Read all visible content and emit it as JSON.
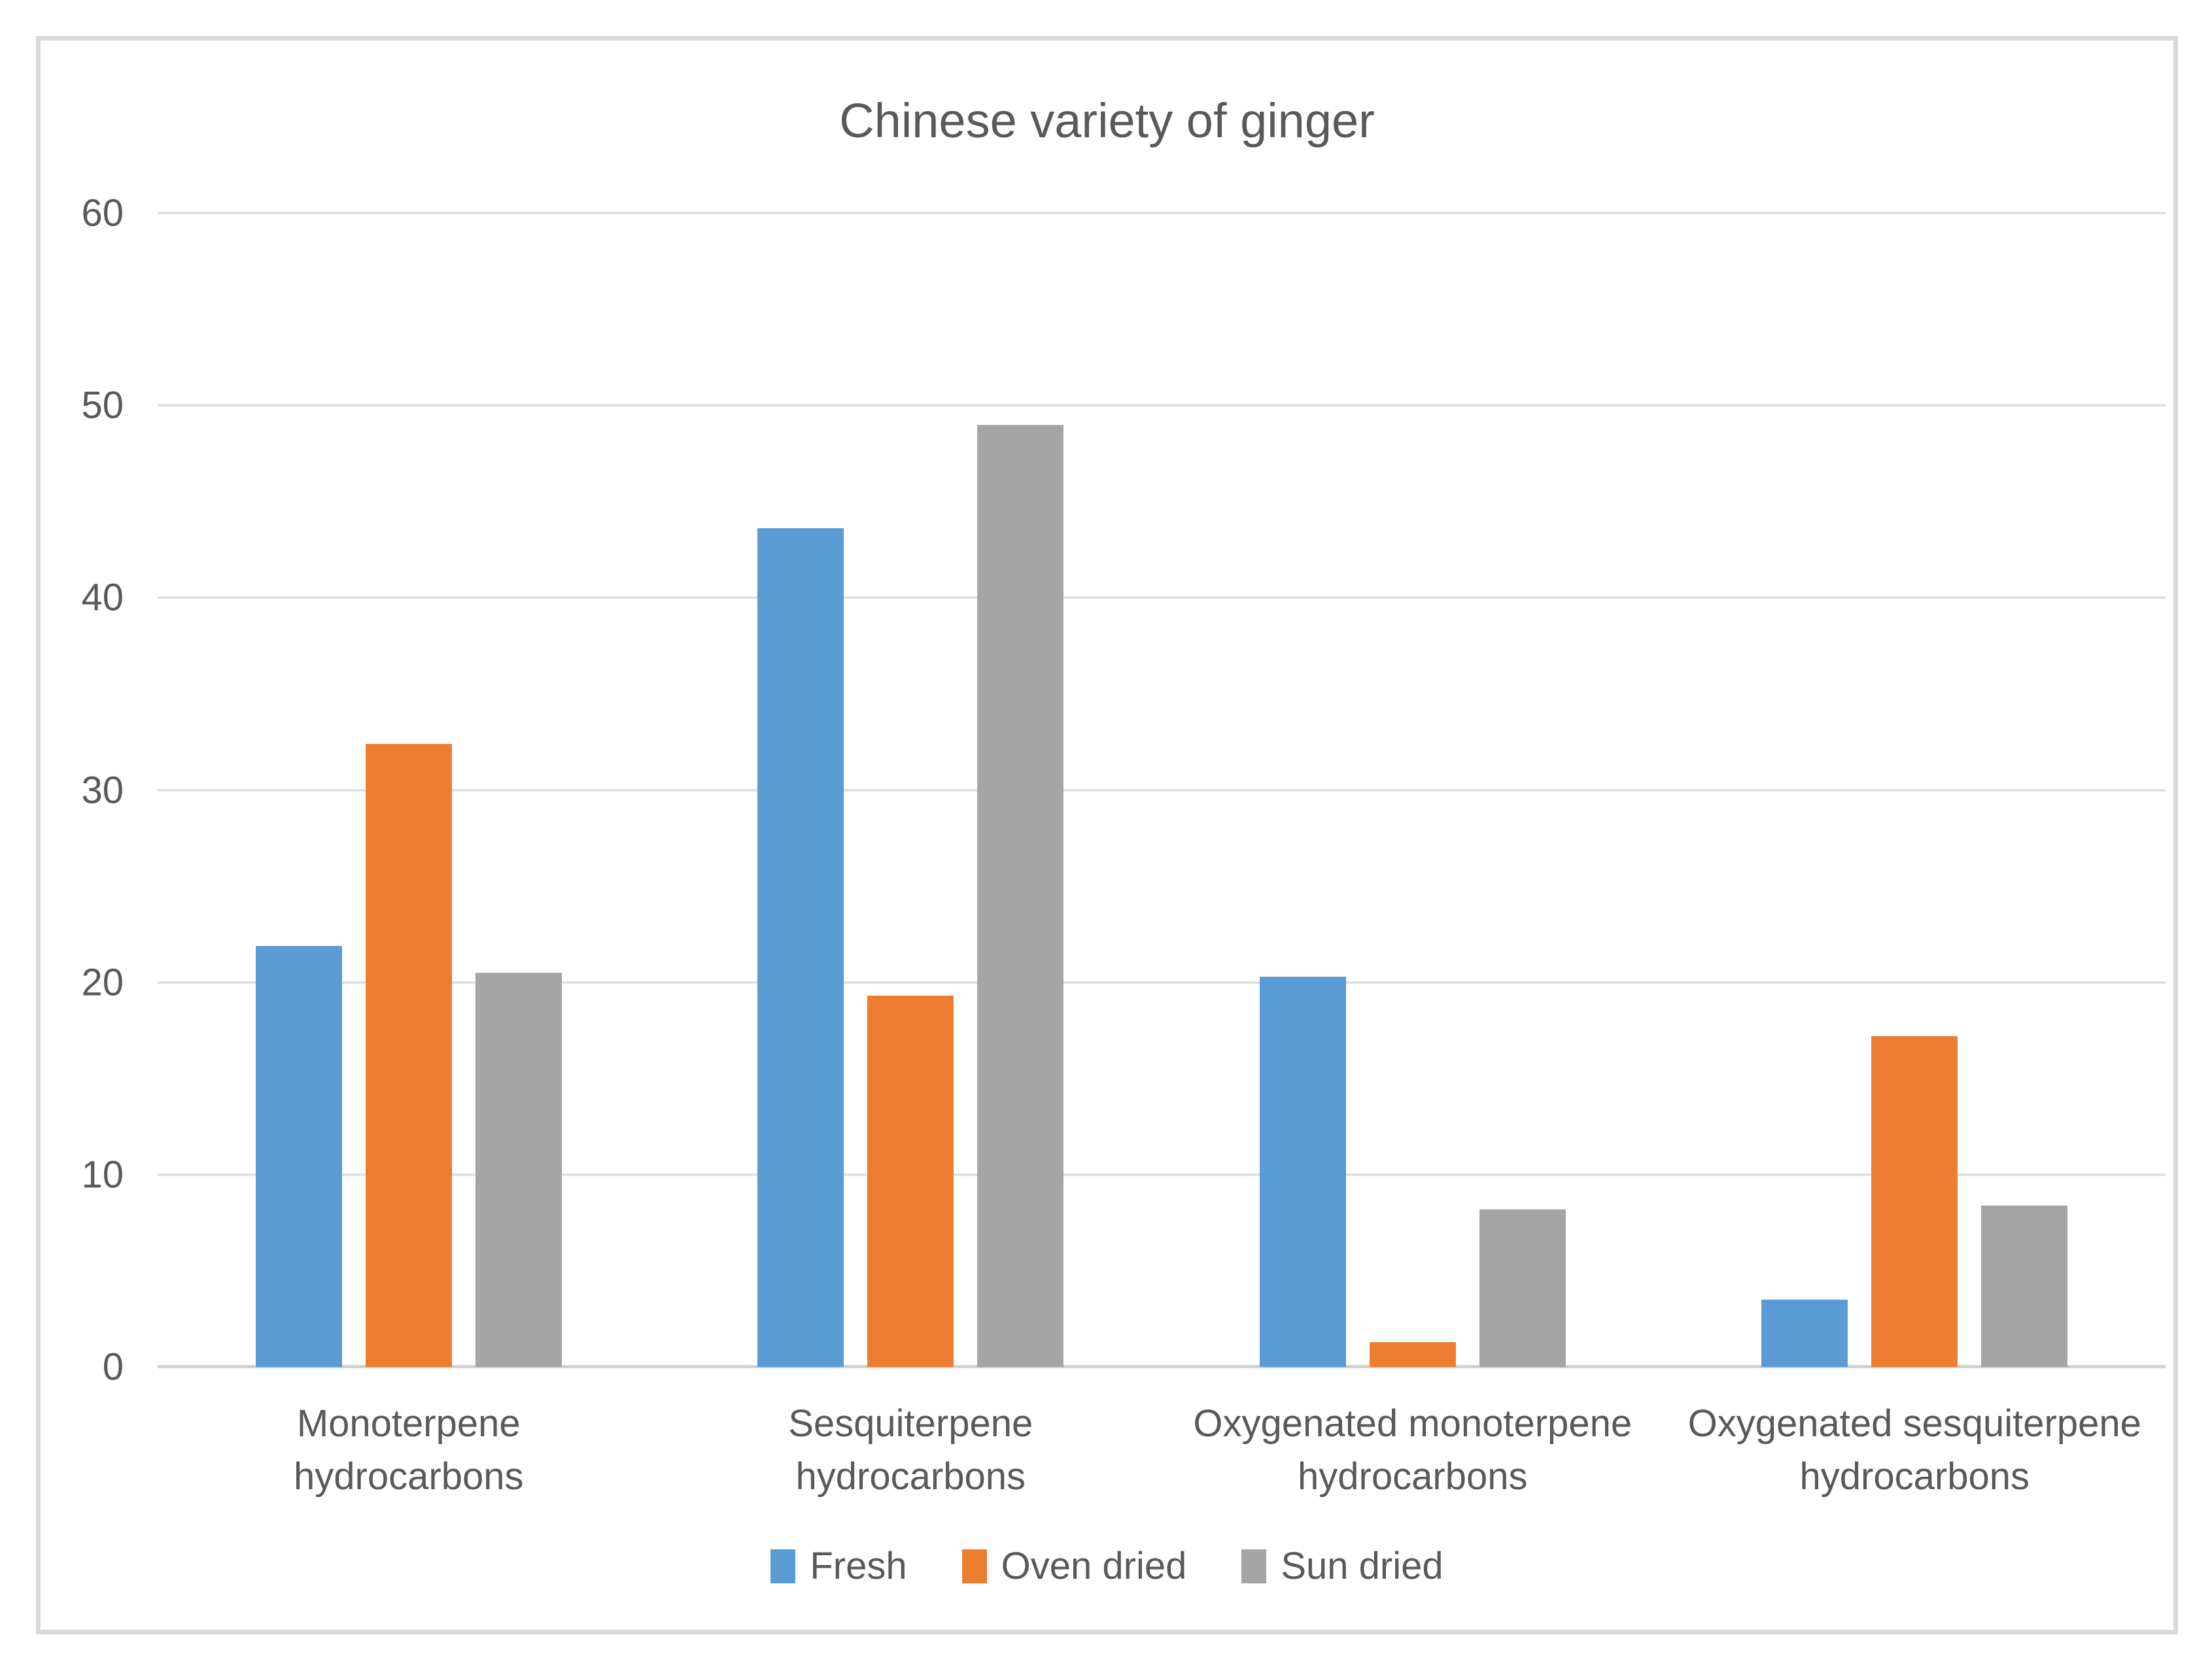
{
  "title": "Chinese variety of ginger",
  "chart_data": {
    "type": "bar",
    "title": "Chinese variety of ginger",
    "categories": [
      "Monoterpene\nhydrocarbons",
      "Sesquiterpene\nhydrocarbons",
      "Oxygenated monoterpene\nhydrocarbons",
      "Oxygenated sesquiterpene\nhydrocarbons"
    ],
    "series": [
      {
        "name": "Fresh",
        "color": "#5B9BD5",
        "values": [
          21.9,
          43.6,
          20.3,
          3.5
        ]
      },
      {
        "name": "Oven dried",
        "color": "#ED7D31",
        "values": [
          32.4,
          19.3,
          1.3,
          17.2
        ]
      },
      {
        "name": "Sun dried",
        "color": "#A5A5A5",
        "values": [
          20.5,
          49.0,
          8.2,
          8.4
        ]
      }
    ],
    "xlabel": "",
    "ylabel": "",
    "ylim": [
      0,
      60
    ],
    "yticks": [
      0,
      10,
      20,
      30,
      40,
      50,
      60
    ],
    "grid": true,
    "legend_position": "bottom"
  },
  "style": {
    "text_color": "#595959",
    "gridline_color": "#E2E2E2",
    "axis_line_color": "#D2D2D2",
    "frame_border_color": "#D9D9D9",
    "background": "#FFFFFF"
  }
}
